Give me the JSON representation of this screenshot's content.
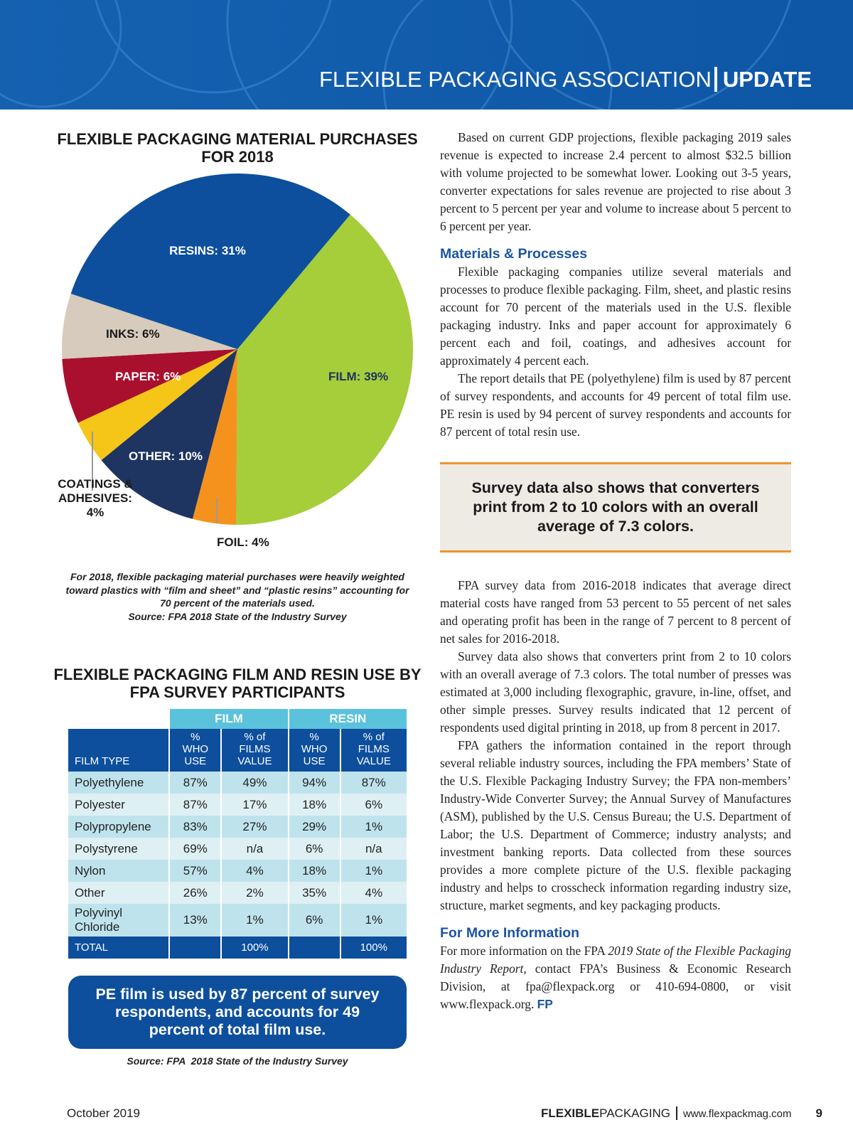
{
  "header": {
    "title": "FLEXIBLE PACKAGING ASSOCIATION",
    "tag": "UPDATE"
  },
  "chart_data": {
    "type": "pie",
    "title": "FLEXIBLE PACKAGING MATERIAL PURCHASES FOR 2018",
    "categories": [
      "FILM:",
      "FOIL:",
      "OTHER:",
      "COATINGS & ADHESIVES:",
      "PAPER:",
      "INKS:",
      "RESINS:"
    ],
    "values": [
      39,
      4,
      10,
      4,
      6,
      6,
      31
    ],
    "value_labels": [
      "39%",
      "4%",
      "10%",
      "4%",
      "6%",
      "6%",
      "31%"
    ],
    "colors": [
      "#a6cd3a",
      "#f5921e",
      "#1e3461",
      "#f5c518",
      "#a8102e",
      "#d6cbbd",
      "#0d4f9c"
    ],
    "caption": "For 2018, flexible packaging material purchases were heavily weighted toward plastics with “film and sheet” and “plastic resins” accounting for 70 percent of the materials used.",
    "source": "Source: FPA 2018 State of the Industry Survey"
  },
  "table": {
    "title": "FLEXIBLE PACKAGING FILM AND RESIN USE BY FPA SURVEY PARTICIPANTS",
    "groups": [
      "FILM",
      "RESIN"
    ],
    "columns": [
      "FILM TYPE",
      [
        "%",
        "WHO USE"
      ],
      [
        "% of",
        "FILMS VALUE"
      ],
      [
        "%",
        "WHO USE"
      ],
      [
        "% of",
        "FILMS VALUE"
      ]
    ],
    "rows": [
      [
        "Polyethylene",
        "87%",
        "49%",
        "94%",
        "87%"
      ],
      [
        "Polyester",
        "87%",
        "17%",
        "18%",
        "6%"
      ],
      [
        "Polypropylene",
        "83%",
        "27%",
        "29%",
        "1%"
      ],
      [
        "Polystyrene",
        "69%",
        "n/a",
        "6%",
        "n/a"
      ],
      [
        "Nylon",
        "57%",
        "4%",
        "18%",
        "1%"
      ],
      [
        "Other",
        "26%",
        "2%",
        "35%",
        "4%"
      ],
      [
        "Polyvinyl Chloride",
        "13%",
        "1%",
        "6%",
        "1%"
      ]
    ],
    "total": {
      "label": "TOTAL",
      "film_value": "100%",
      "resin_value": "100%"
    }
  },
  "left_callout": "PE film is used by 87 percent of survey respondents, and accounts for 49 percent of total film use.",
  "left_source": "Source: FPA  2018 State of the Industry Survey",
  "article": {
    "intro": "Based on current GDP projections, flexible packaging 2019 sales revenue is expected to increase 2.4 percent to almost $32.5 billion with volume projected to be somewhat lower. Looking out 3-5 years, converter expectations for sales revenue are projected to rise about 3 percent to 5 percent per year and volume to increase about 5 percent to 6 percent per year.",
    "heading1": "Materials & Processes",
    "section1": [
      "Flexible packaging companies utilize several materials and processes to produce flexible packaging. Film, sheet, and plastic resins account for 70 percent of the materials used in the U.S. flexible packaging industry. Inks and paper account for approximately 6 percent each and foil, coatings, and adhesives account for approximately 4 percent each.",
      "The report details that PE (polyethylene) film is used by 87 percent of survey respondents, and accounts for 49 percent of total film use. PE resin is used by 94 percent of survey respondents and accounts for 87 percent of total resin use."
    ],
    "callout": "Survey data also shows that converters print from 2 to 10 colors with an overall average of 7.3 colors.",
    "section2": [
      "FPA survey data from 2016-2018 indicates that average direct material costs have ranged from 53 percent to 55 percent of net sales and operating profit has been in the range of 7 percent to 8 percent of net sales for 2016-2018.",
      "Survey data also shows that converters print from 2 to 10 colors with an overall average of 7.3 colors. The total number of presses was estimated at 3,000 including flexographic, gravure, in-line, offset, and other simple presses. Survey results indicated that 12 percent of respondents used digital printing in 2018, up from 8 percent in 2017.",
      "FPA gathers the information contained in the report through several reliable industry sources, including the FPA members’ State of the U.S. Flexible Packaging Industry Survey; the FPA non-members’ Industry-Wide Converter Survey; the Annual Survey of Manufactures (ASM), published by the U.S. Census Bureau; the U.S. Department of Labor; the U.S. Department of Commerce; industry analysts; and investment banking reports. Data collected from these sources provides a more complete picture of the U.S. flexible packaging industry and helps to crosscheck information regarding industry size, structure, market segments, and key packaging products."
    ],
    "heading2": "For More Information",
    "more": [
      "For more information on the FPA ",
      "2019 State of the Flexible Packaging Industry Report,",
      " contact FPA’s Business & Economic Research Division, at fpa@flexpack.org or 410-694-0800, or visit www.flexpack.org. ",
      "FP"
    ]
  },
  "footer": {
    "date": "October 2019",
    "brand_bold": "FLEXIBLE",
    "brand": "PACKAGING",
    "url": "www.flexpackmag.com",
    "page": "9"
  }
}
